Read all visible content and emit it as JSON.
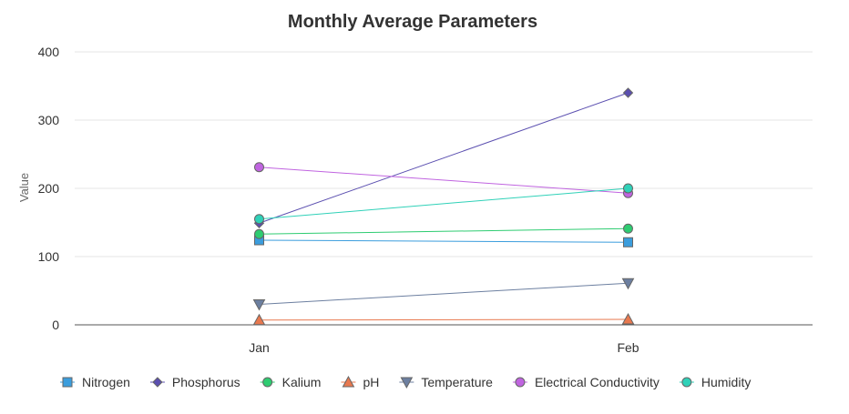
{
  "chart_data": {
    "type": "line",
    "title": "Monthly Average Parameters",
    "xlabel": "",
    "ylabel": "Value",
    "categories": [
      "Jan",
      "Feb"
    ],
    "ylim": [
      0,
      400
    ],
    "yticks": [
      0,
      100,
      200,
      300,
      400
    ],
    "grid": true,
    "legend_position": "bottom",
    "series": [
      {
        "name": "Nitrogen",
        "values": [
          124,
          121
        ],
        "color": "#3b9ddd",
        "marker": "square"
      },
      {
        "name": "Phosphorus",
        "values": [
          149,
          340
        ],
        "color": "#5b4fb0",
        "marker": "diamond"
      },
      {
        "name": "Kalium",
        "values": [
          133,
          141
        ],
        "color": "#2ecc71",
        "marker": "circle"
      },
      {
        "name": "pH",
        "values": [
          7,
          8
        ],
        "color": "#e8784e",
        "marker": "triangle"
      },
      {
        "name": "Temperature",
        "values": [
          30,
          61
        ],
        "color": "#6c7fa0",
        "marker": "triangle-down"
      },
      {
        "name": "Electrical Conductivity",
        "values": [
          231,
          193
        ],
        "color": "#c064e0",
        "marker": "circle"
      },
      {
        "name": "Humidity",
        "values": [
          155,
          200
        ],
        "color": "#2fd1b8",
        "marker": "circle"
      }
    ]
  }
}
